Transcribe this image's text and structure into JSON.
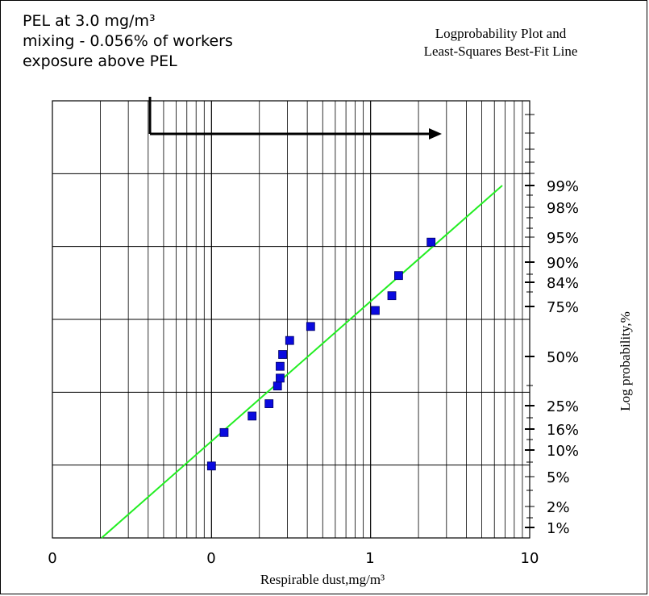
{
  "annotation": {
    "line1": "PEL at 3.0 mg/m³",
    "line2": "mixing - 0.056% of workers",
    "line3": "exposure above PEL"
  },
  "chart_data": {
    "type": "scatter",
    "title_line1": "Logprobability Plot and",
    "title_line2": "Least-Squares Best-Fit Line",
    "xlabel": "Respirable dust,mg/m³",
    "ylabel": "Log probability,%",
    "x_scale": "log",
    "y_scale": "probability",
    "x_tick_labels": [
      "0",
      "0",
      "1",
      "10"
    ],
    "y_tick_labels": [
      "99%",
      "98%",
      "95%",
      "90%",
      "84%",
      "75%",
      "50%",
      "25%",
      "16%",
      "10%",
      "5%",
      "2%",
      "1%"
    ],
    "grid": true,
    "points": [
      {
        "x": 0.1,
        "y": 7
      },
      {
        "x": 0.12,
        "y": 15
      },
      {
        "x": 0.18,
        "y": 21
      },
      {
        "x": 0.23,
        "y": 26
      },
      {
        "x": 0.26,
        "y": 35
      },
      {
        "x": 0.27,
        "y": 39
      },
      {
        "x": 0.27,
        "y": 45
      },
      {
        "x": 0.28,
        "y": 51
      },
      {
        "x": 0.31,
        "y": 58
      },
      {
        "x": 0.42,
        "y": 65
      },
      {
        "x": 1.07,
        "y": 73
      },
      {
        "x": 1.36,
        "y": 79
      },
      {
        "x": 1.5,
        "y": 86
      },
      {
        "x": 2.4,
        "y": 94
      }
    ],
    "fit_line": {
      "x": [
        0.033,
        6.4
      ],
      "y": [
        0.1,
        99.4
      ]
    },
    "colors": {
      "points": "#0a0adf",
      "fit_line": "#22ee22",
      "grid": "#000000",
      "arrow": "#000000"
    }
  }
}
